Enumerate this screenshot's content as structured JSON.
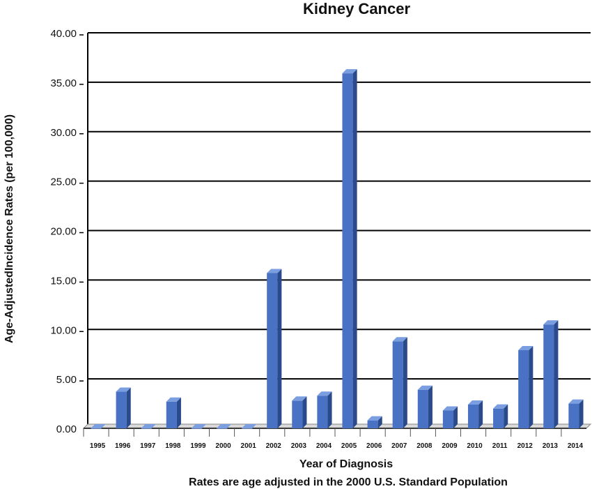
{
  "chart_data": {
    "type": "bar",
    "title": "Kidney Cancer",
    "xlabel": "Year of Diagnosis",
    "ylabel": "Age-AdjustedIncidence Rates (per 100,000)",
    "footnote": "Rates are age adjusted in the 2000 U.S. Standard Population",
    "categories": [
      "1995",
      "1996",
      "1997",
      "1998",
      "1999",
      "2000",
      "2001",
      "2002",
      "2003",
      "2004",
      "2005",
      "2006",
      "2007",
      "2008",
      "2009",
      "2010",
      "2011",
      "2012",
      "2013",
      "2014"
    ],
    "values": [
      0.0,
      3.7,
      0.0,
      2.7,
      0.0,
      0.0,
      0.0,
      15.7,
      2.8,
      3.3,
      35.9,
      0.8,
      8.8,
      3.9,
      1.8,
      2.4,
      2.0,
      7.9,
      10.5,
      2.5
    ],
    "ylim": [
      0,
      40
    ],
    "yticks": [
      "0.00",
      "5.00",
      "10.00",
      "15.00",
      "20.00",
      "25.00",
      "30.00",
      "35.00",
      "40.00"
    ],
    "grid": true,
    "legend": "none",
    "bar_color": "#4a72c4",
    "bar_side_color": "#2a4a8c",
    "bar_top_color": "#7a9ee0"
  }
}
